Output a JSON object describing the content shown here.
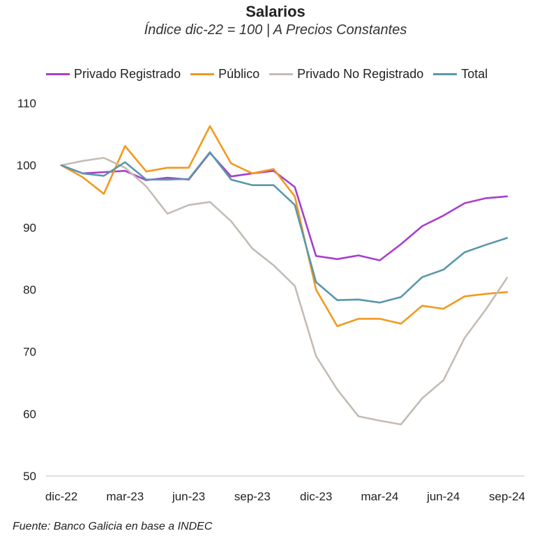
{
  "chart_data": {
    "type": "line",
    "title": "Salarios",
    "subtitle": "Índice dic-22 = 100 | A Precios Constantes",
    "x": [
      "dic-22",
      "ene-23",
      "feb-23",
      "mar-23",
      "abr-23",
      "may-23",
      "jun-23",
      "jul-23",
      "ago-23",
      "sep-23",
      "oct-23",
      "nov-23",
      "dic-23",
      "ene-24",
      "feb-24",
      "mar-24",
      "abr-24",
      "may-24",
      "jun-24",
      "jul-24",
      "ago-24",
      "sep-24"
    ],
    "x_tick_labels": [
      "dic-22",
      "mar-23",
      "jun-23",
      "sep-23",
      "dic-23",
      "mar-24",
      "jun-24",
      "sep-24"
    ],
    "ylim": [
      50,
      110
    ],
    "y_ticks": [
      50,
      60,
      70,
      80,
      90,
      100,
      110
    ],
    "grid": false,
    "legend_position": "top",
    "series": [
      {
        "name": "Privado Registrado",
        "color": "#a63fcc",
        "values": [
          100,
          98.7,
          98.9,
          99.1,
          97.6,
          98.0,
          97.7,
          102.0,
          98.2,
          98.7,
          99.1,
          96.5,
          85.4,
          84.9,
          85.5,
          84.7,
          87.3,
          90.2,
          91.9,
          93.9,
          94.7,
          95.0
        ]
      },
      {
        "name": "Público",
        "color": "#f2991e",
        "values": [
          100,
          98.1,
          95.4,
          103.1,
          99.0,
          99.6,
          99.6,
          106.3,
          100.3,
          98.7,
          99.4,
          95.0,
          80.0,
          74.1,
          75.3,
          75.3,
          74.5,
          77.4,
          76.9,
          78.9,
          79.3,
          79.6
        ]
      },
      {
        "name": "Privado No Registrado",
        "color": "#c4bcb4",
        "values": [
          100,
          100.7,
          101.2,
          99.6,
          96.6,
          92.2,
          93.6,
          94.1,
          91.0,
          86.6,
          83.9,
          80.6,
          69.3,
          63.9,
          59.6,
          58.9,
          58.3,
          62.5,
          65.4,
          72.2,
          76.8,
          81.9
        ]
      },
      {
        "name": "Total",
        "color": "#5a96ac",
        "values": [
          100,
          98.7,
          98.3,
          100.5,
          97.7,
          97.7,
          97.8,
          102.1,
          97.7,
          96.8,
          96.8,
          93.6,
          81.2,
          78.3,
          78.4,
          77.9,
          78.8,
          82.0,
          83.2,
          86.0,
          87.2,
          88.3
        ]
      }
    ]
  },
  "source": "Fuente: Banco Galicia en base a INDEC"
}
